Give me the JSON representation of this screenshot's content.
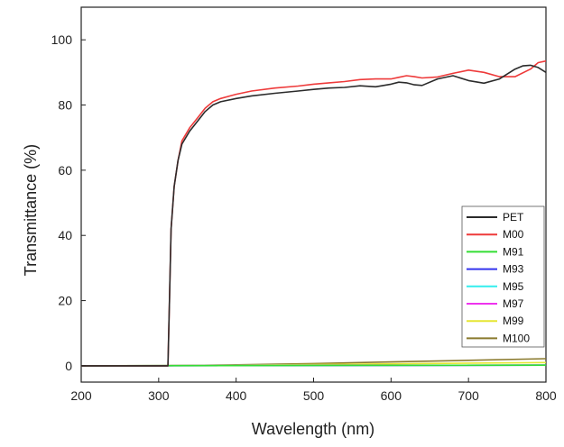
{
  "chart_data": {
    "type": "line",
    "xlabel": "Wavelength (nm)",
    "ylabel": "Transmittance (%)",
    "xlim": [
      200,
      800
    ],
    "ylim": [
      -5,
      110
    ],
    "x_ticks": [
      200,
      300,
      400,
      500,
      600,
      700,
      800
    ],
    "y_ticks": [
      0,
      20,
      40,
      60,
      80,
      100
    ],
    "grid": false,
    "legend_position": "lower-right",
    "series": [
      {
        "name": "PET",
        "color": "#2b2b2b",
        "points": [
          [
            200,
            0
          ],
          [
            300,
            0
          ],
          [
            312,
            0
          ],
          [
            314,
            20
          ],
          [
            316,
            42
          ],
          [
            320,
            55
          ],
          [
            325,
            63
          ],
          [
            330,
            68
          ],
          [
            340,
            72
          ],
          [
            350,
            75
          ],
          [
            360,
            78
          ],
          [
            370,
            80
          ],
          [
            380,
            81
          ],
          [
            400,
            82
          ],
          [
            420,
            82.8
          ],
          [
            450,
            83.6
          ],
          [
            480,
            84.3
          ],
          [
            500,
            84.8
          ],
          [
            520,
            85.2
          ],
          [
            540,
            85.4
          ],
          [
            560,
            85.9
          ],
          [
            580,
            85.6
          ],
          [
            600,
            86.4
          ],
          [
            610,
            87
          ],
          [
            620,
            86.8
          ],
          [
            630,
            86.2
          ],
          [
            640,
            86
          ],
          [
            660,
            88
          ],
          [
            680,
            89
          ],
          [
            700,
            87.5
          ],
          [
            720,
            86.7
          ],
          [
            740,
            88
          ],
          [
            760,
            91
          ],
          [
            770,
            92
          ],
          [
            780,
            92.2
          ],
          [
            790,
            91.5
          ],
          [
            800,
            90
          ]
        ]
      },
      {
        "name": "M00",
        "color": "#ee3a3a",
        "points": [
          [
            200,
            0
          ],
          [
            300,
            0
          ],
          [
            312,
            0
          ],
          [
            314,
            20
          ],
          [
            316,
            42
          ],
          [
            320,
            55
          ],
          [
            325,
            63
          ],
          [
            330,
            69
          ],
          [
            340,
            73
          ],
          [
            350,
            76
          ],
          [
            360,
            79
          ],
          [
            370,
            81
          ],
          [
            380,
            82
          ],
          [
            400,
            83.3
          ],
          [
            420,
            84.3
          ],
          [
            450,
            85.2
          ],
          [
            480,
            85.8
          ],
          [
            500,
            86.4
          ],
          [
            520,
            86.8
          ],
          [
            540,
            87.2
          ],
          [
            560,
            87.8
          ],
          [
            580,
            88
          ],
          [
            600,
            88
          ],
          [
            610,
            88.5
          ],
          [
            620,
            89
          ],
          [
            630,
            88.7
          ],
          [
            640,
            88.3
          ],
          [
            660,
            88.6
          ],
          [
            680,
            89.7
          ],
          [
            700,
            90.7
          ],
          [
            720,
            90
          ],
          [
            740,
            88.7
          ],
          [
            760,
            88.7
          ],
          [
            780,
            91
          ],
          [
            790,
            93
          ],
          [
            800,
            93.5
          ]
        ]
      },
      {
        "name": "M91",
        "color": "#33dd33",
        "points": [
          [
            200,
            0
          ],
          [
            800,
            0.2
          ]
        ]
      },
      {
        "name": "M93",
        "color": "#3333ee",
        "points": [
          [
            200,
            0
          ],
          [
            800,
            0.2
          ]
        ]
      },
      {
        "name": "M95",
        "color": "#33eeee",
        "points": [
          [
            200,
            0
          ],
          [
            800,
            0.2
          ]
        ]
      },
      {
        "name": "M97",
        "color": "#ee33ee",
        "points": [
          [
            200,
            0
          ],
          [
            800,
            0.2
          ]
        ]
      },
      {
        "name": "M99",
        "color": "#e6e633",
        "points": [
          [
            200,
            0
          ],
          [
            400,
            0.2
          ],
          [
            600,
            0.6
          ],
          [
            800,
            1.0
          ]
        ]
      },
      {
        "name": "M100",
        "color": "#8a7a2e",
        "points": [
          [
            200,
            0
          ],
          [
            300,
            0
          ],
          [
            400,
            0.3
          ],
          [
            500,
            0.7
          ],
          [
            600,
            1.2
          ],
          [
            700,
            1.7
          ],
          [
            800,
            2.2
          ]
        ]
      }
    ]
  }
}
